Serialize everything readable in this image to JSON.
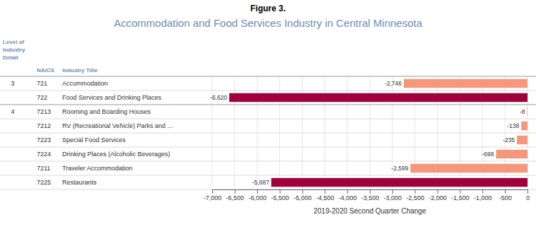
{
  "chart_data": {
    "type": "bar",
    "orientation": "horizontal",
    "title": "Figure 3.",
    "subtitle": "Accommodation and Food Services Industry in Central Minnesota",
    "xlabel": "2019-2020 Second Quarter Change",
    "column_headers": [
      "Level of\nIndustry\nDetail",
      "NAICS",
      "Industry Title"
    ],
    "levels": [
      "3",
      null,
      "4",
      null,
      null,
      null,
      null,
      null
    ],
    "naics": [
      "721",
      "722",
      "7213",
      "7212",
      "7223",
      "7224",
      "7211",
      "7225"
    ],
    "categories": [
      "Accommodation",
      "Food Services and Drinking Places",
      "Rooming and Boarding Houses",
      "RV (Recreational Vehicle) Parks and ...",
      "Special Food Services",
      "Drinking Places (Alcoholic Beverages)",
      "Traveler Accommodation",
      "Restaurants"
    ],
    "values": [
      -2746,
      -6620,
      -8,
      -138,
      -235,
      -698,
      -2599,
      -5687
    ],
    "value_labels": [
      "-2,746",
      "-6,620",
      "-8",
      "-138",
      "-235",
      "-698",
      "-2,599",
      "-5,687"
    ],
    "colors": [
      "#F4977A",
      "#A0003C",
      "#F4977A",
      "#F4977A",
      "#F4977A",
      "#F4977A",
      "#F4977A",
      "#A0003C"
    ],
    "data_labels": true,
    "xlim": [
      -7000,
      0
    ],
    "xticks": [
      {
        "value": -7000,
        "label": "-7,000"
      },
      {
        "value": -6500,
        "label": "-6,500"
      },
      {
        "value": -6000,
        "label": "-6,000"
      },
      {
        "value": -5500,
        "label": "-5,500"
      },
      {
        "value": -5000,
        "label": "-5,000"
      },
      {
        "value": -4500,
        "label": "-4,500"
      },
      {
        "value": -4000,
        "label": "-4,000"
      },
      {
        "value": -3500,
        "label": "-3,500"
      },
      {
        "value": -3000,
        "label": "-3,000"
      },
      {
        "value": -2500,
        "label": "-2,500"
      },
      {
        "value": -2000,
        "label": "-2,000"
      },
      {
        "value": -1500,
        "label": "-1,500"
      },
      {
        "value": -1000,
        "label": "-1,000"
      },
      -500,
      0
    ],
    "grid": true
  }
}
